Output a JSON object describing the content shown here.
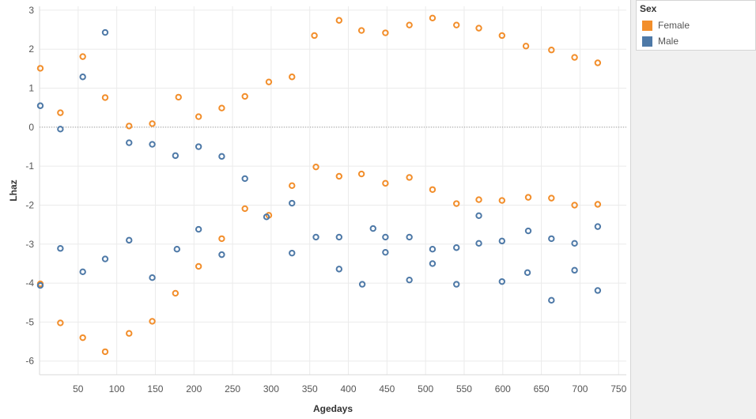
{
  "chart_data": {
    "type": "scatter",
    "xlabel": "Agedays",
    "ylabel": "Lhaz",
    "xlim": [
      0,
      760
    ],
    "ylim": [
      -6.35,
      3.1
    ],
    "x_ticks": [
      50,
      100,
      150,
      200,
      250,
      300,
      350,
      400,
      450,
      500,
      550,
      600,
      650,
      700,
      750
    ],
    "y_ticks": [
      3,
      2,
      1,
      0,
      -1,
      -2,
      -3,
      -4,
      -5,
      -6
    ],
    "grid": true,
    "zero_line": true,
    "legend": {
      "title": "Sex",
      "position": "top-right",
      "entries": [
        "Female",
        "Male"
      ]
    },
    "series": [
      {
        "name": "Female",
        "color": "#f28e2b",
        "points": [
          [
            1,
            1.51
          ],
          [
            1,
            -4.02
          ],
          [
            27,
            0.37
          ],
          [
            27,
            -5.02
          ],
          [
            56,
            1.81
          ],
          [
            56,
            -5.4
          ],
          [
            85,
            0.76
          ],
          [
            85,
            -5.76
          ],
          [
            116,
            0.03
          ],
          [
            116,
            -5.29
          ],
          [
            146,
            0.09
          ],
          [
            146,
            -4.98
          ],
          [
            176,
            -4.26
          ],
          [
            180,
            0.77
          ],
          [
            206,
            0.27
          ],
          [
            206,
            -3.57
          ],
          [
            236,
            0.49
          ],
          [
            236,
            -2.86
          ],
          [
            266,
            0.79
          ],
          [
            266,
            -2.09
          ],
          [
            297,
            1.16
          ],
          [
            297,
            -2.26
          ],
          [
            327,
            1.29
          ],
          [
            327,
            -1.5
          ],
          [
            356,
            2.35
          ],
          [
            358,
            -1.02
          ],
          [
            388,
            2.74
          ],
          [
            388,
            -1.26
          ],
          [
            417,
            2.48
          ],
          [
            417,
            -1.2
          ],
          [
            448,
            2.42
          ],
          [
            448,
            -1.44
          ],
          [
            479,
            2.62
          ],
          [
            479,
            -1.29
          ],
          [
            509,
            2.8
          ],
          [
            509,
            -1.6
          ],
          [
            540,
            2.62
          ],
          [
            540,
            -1.96
          ],
          [
            569,
            2.54
          ],
          [
            569,
            -1.86
          ],
          [
            599,
            2.35
          ],
          [
            599,
            -1.88
          ],
          [
            630,
            2.08
          ],
          [
            633,
            -1.8
          ],
          [
            663,
            1.98
          ],
          [
            663,
            -1.82
          ],
          [
            693,
            1.79
          ],
          [
            693,
            -2.0
          ],
          [
            723,
            1.65
          ],
          [
            723,
            -1.98
          ]
        ]
      },
      {
        "name": "Male",
        "color": "#4e79a7",
        "points": [
          [
            1,
            0.55
          ],
          [
            1,
            -4.06
          ],
          [
            27,
            -0.05
          ],
          [
            27,
            -3.11
          ],
          [
            56,
            1.29
          ],
          [
            56,
            -3.71
          ],
          [
            85,
            2.43
          ],
          [
            85,
            -3.38
          ],
          [
            116,
            -0.4
          ],
          [
            116,
            -2.9
          ],
          [
            146,
            -0.44
          ],
          [
            146,
            -3.86
          ],
          [
            176,
            -0.73
          ],
          [
            178,
            -3.13
          ],
          [
            206,
            -0.5
          ],
          [
            206,
            -2.62
          ],
          [
            236,
            -0.75
          ],
          [
            236,
            -3.27
          ],
          [
            266,
            -1.32
          ],
          [
            294,
            -2.3
          ],
          [
            327,
            -1.95
          ],
          [
            327,
            -3.23
          ],
          [
            358,
            -2.82
          ],
          [
            388,
            -3.64
          ],
          [
            388,
            -2.82
          ],
          [
            418,
            -4.03
          ],
          [
            432,
            -2.6
          ],
          [
            448,
            -2.82
          ],
          [
            448,
            -3.21
          ],
          [
            479,
            -3.92
          ],
          [
            479,
            -2.82
          ],
          [
            509,
            -3.5
          ],
          [
            509,
            -3.13
          ],
          [
            540,
            -4.03
          ],
          [
            540,
            -3.09
          ],
          [
            569,
            -2.27
          ],
          [
            569,
            -2.98
          ],
          [
            599,
            -3.96
          ],
          [
            599,
            -2.92
          ],
          [
            632,
            -3.73
          ],
          [
            633,
            -2.66
          ],
          [
            663,
            -4.44
          ],
          [
            663,
            -2.86
          ],
          [
            693,
            -2.98
          ],
          [
            693,
            -3.67
          ],
          [
            723,
            -4.19
          ],
          [
            723,
            -2.55
          ]
        ]
      }
    ]
  }
}
